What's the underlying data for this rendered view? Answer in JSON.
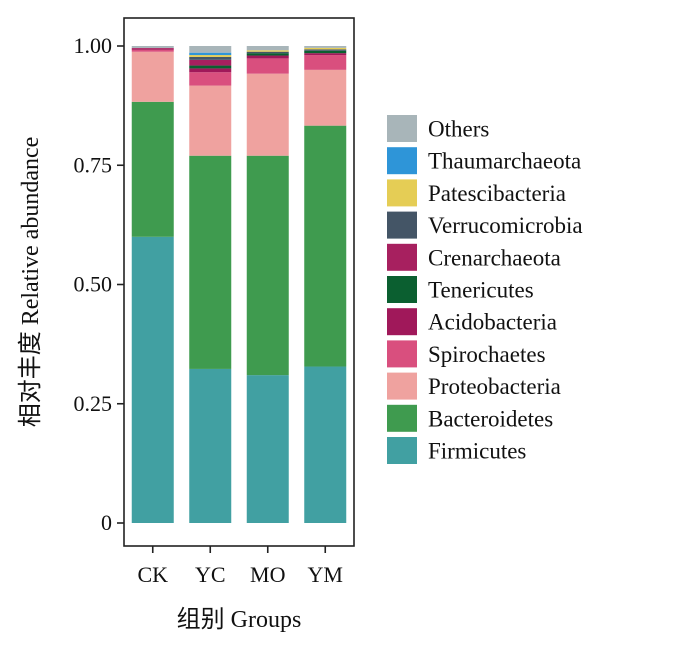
{
  "chart_data": {
    "type": "bar",
    "stacked": true,
    "title": "",
    "xlabel": "组别  Groups",
    "ylabel": "相对丰度  Relative abundance",
    "ylim": [
      0,
      1
    ],
    "yticks": [
      {
        "value": 0,
        "label": "0"
      },
      {
        "value": 0.25,
        "label": "0.25"
      },
      {
        "value": 0.5,
        "label": "0.50"
      },
      {
        "value": 0.75,
        "label": "0.75"
      },
      {
        "value": 1.0,
        "label": "1.00"
      }
    ],
    "grid": false,
    "legend_position": "right",
    "categories": [
      "CK",
      "YC",
      "MO",
      "YM"
    ],
    "series": [
      {
        "name": "Firmicutes",
        "color": "#41a0a2",
        "values": [
          0.6,
          0.323,
          0.31,
          0.328
        ]
      },
      {
        "name": "Bacteroidetes",
        "color": "#3f9b4f",
        "values": [
          0.283,
          0.447,
          0.46,
          0.505
        ]
      },
      {
        "name": "Proteobacteria",
        "color": "#efa29f",
        "values": [
          0.105,
          0.147,
          0.172,
          0.117
        ]
      },
      {
        "name": "Spirochaetes",
        "color": "#d94f7e",
        "values": [
          0.004,
          0.028,
          0.032,
          0.031
        ]
      },
      {
        "name": "Acidobacteria",
        "color": "#a0185a",
        "values": [
          0.002,
          0.008,
          0.006,
          0.004
        ]
      },
      {
        "name": "Tenericutes",
        "color": "#0b5f30",
        "values": [
          0.0,
          0.006,
          0.005,
          0.005
        ]
      },
      {
        "name": "Crenarchaeota",
        "color": "#a7205f",
        "values": [
          0.002,
          0.012,
          0.0,
          0.0
        ]
      },
      {
        "name": "Verrucomicrobia",
        "color": "#445566",
        "values": [
          0.0,
          0.006,
          0.003,
          0.003
        ]
      },
      {
        "name": "Patescibacteria",
        "color": "#e5cd55",
        "values": [
          0.0,
          0.004,
          0.003,
          0.003
        ]
      },
      {
        "name": "Thaumarchaeota",
        "color": "#2e95d8",
        "values": [
          0.0,
          0.005,
          0.0,
          0.0
        ]
      },
      {
        "name": "Others",
        "color": "#a8b5b9",
        "values": [
          0.004,
          0.014,
          0.009,
          0.004
        ]
      }
    ]
  }
}
